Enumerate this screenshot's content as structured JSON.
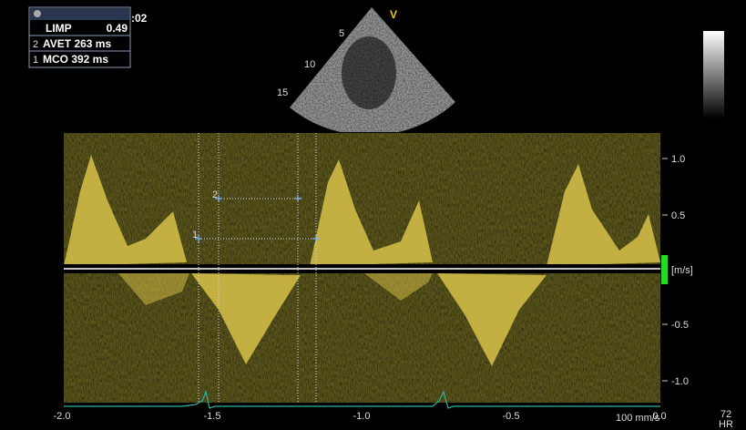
{
  "measurement_box": {
    "limp": {
      "label": "LIMP",
      "value": "0.49"
    },
    "avet": {
      "index": "2",
      "label": "AVET 263 ms"
    },
    "mco": {
      "index": "1",
      "label": "MCO 392 ms"
    }
  },
  "clock": ":02",
  "sector": {
    "depth_labels": [
      "5",
      "10",
      "15"
    ],
    "marker": "V"
  },
  "velocity_scale": {
    "labels": [
      "1.0",
      "0.5",
      "[m/s]",
      "-0.5",
      "-1.0"
    ]
  },
  "time_scale": {
    "labels": [
      "-2.0",
      "-1.5",
      "-1.0",
      "-0.5",
      "0.0"
    ],
    "sweep_speed": "100 mm/s"
  },
  "calipers": [
    "1",
    "2"
  ],
  "heart_rate": {
    "value": "72",
    "label": "HR"
  }
}
